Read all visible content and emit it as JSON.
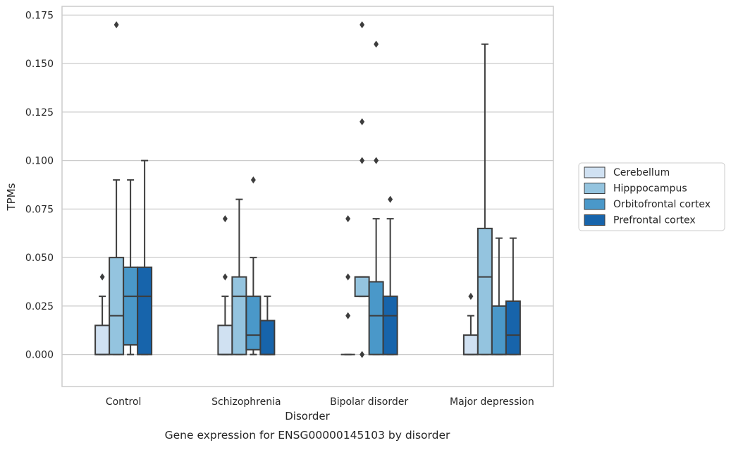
{
  "chart_data": {
    "type": "boxplot",
    "title": "Gene expression for ENSG00000145103 by disorder",
    "xlabel": "Disorder",
    "ylabel": "TPMs",
    "ylim": [
      -0.0165,
      0.1795
    ],
    "yticks": [
      "0.000",
      "0.025",
      "0.050",
      "0.075",
      "0.100",
      "0.125",
      "0.150",
      "0.175"
    ],
    "ytick_values": [
      0,
      0.025,
      0.05,
      0.075,
      0.1,
      0.125,
      0.15,
      0.175
    ],
    "grid": true,
    "legend_position": "right, outside plot",
    "categories": [
      "Control",
      "Schizophrenia",
      "Bipolar disorder",
      "Major depression"
    ],
    "series": [
      {
        "name": "Cerebellum",
        "color": "#d0e1f2",
        "boxes": [
          {
            "whislo": 0,
            "q1": 0,
            "med": 0,
            "q3": 0.015,
            "whishi": 0.03,
            "fliers": [
              0.04
            ]
          },
          {
            "whislo": 0,
            "q1": 0,
            "med": 0,
            "q3": 0.015,
            "whishi": 0.03,
            "fliers": [
              0.04,
              0.07
            ]
          },
          {
            "whislo": 0,
            "q1": 0,
            "med": 0,
            "q3": 0,
            "whishi": 0,
            "fliers": [
              0.02,
              0.04,
              0.07
            ]
          },
          {
            "whislo": 0,
            "q1": 0,
            "med": 0,
            "q3": 0.01,
            "whishi": 0.02,
            "fliers": [
              0.03
            ]
          }
        ]
      },
      {
        "name": "Hipppocampus",
        "color": "#94c4df",
        "boxes": [
          {
            "whislo": 0,
            "q1": 0,
            "med": 0.02,
            "q3": 0.05,
            "whishi": 0.09,
            "fliers": [
              0.17
            ]
          },
          {
            "whislo": 0,
            "q1": 0,
            "med": 0.03,
            "q3": 0.04,
            "whishi": 0.08,
            "fliers": []
          },
          {
            "whislo": 0.03,
            "q1": 0.03,
            "med": 0.04,
            "q3": 0.04,
            "whishi": 0.04,
            "fliers": [
              0,
              0.1,
              0.12,
              0.17
            ]
          },
          {
            "whislo": 0,
            "q1": 0,
            "med": 0.04,
            "q3": 0.065,
            "whishi": 0.16,
            "fliers": []
          }
        ]
      },
      {
        "name": "Orbitofrontal cortex",
        "color": "#4a98c9",
        "boxes": [
          {
            "whislo": 0,
            "q1": 0.005,
            "med": 0.03,
            "q3": 0.045,
            "whishi": 0.09,
            "fliers": []
          },
          {
            "whislo": 0,
            "q1": 0.0025,
            "med": 0.01,
            "q3": 0.03,
            "whishi": 0.05,
            "fliers": [
              0.09
            ]
          },
          {
            "whislo": 0,
            "q1": 0,
            "med": 0.02,
            "q3": 0.0375,
            "whishi": 0.07,
            "fliers": [
              0.1,
              0.16
            ]
          },
          {
            "whislo": 0,
            "q1": 0,
            "med": 0,
            "q3": 0.025,
            "whishi": 0.06,
            "fliers": []
          }
        ]
      },
      {
        "name": "Prefrontal cortex",
        "color": "#1764ab",
        "boxes": [
          {
            "whislo": 0,
            "q1": 0,
            "med": 0.03,
            "q3": 0.045,
            "whishi": 0.1,
            "fliers": []
          },
          {
            "whislo": 0,
            "q1": 0,
            "med": 0,
            "q3": 0.0175,
            "whishi": 0.03,
            "fliers": []
          },
          {
            "whislo": 0,
            "q1": 0,
            "med": 0.02,
            "q3": 0.03,
            "whishi": 0.07,
            "fliers": [
              0.08
            ]
          },
          {
            "whislo": 0,
            "q1": 0,
            "med": 0.01,
            "q3": 0.0275,
            "whishi": 0.06,
            "fliers": []
          }
        ]
      }
    ]
  }
}
